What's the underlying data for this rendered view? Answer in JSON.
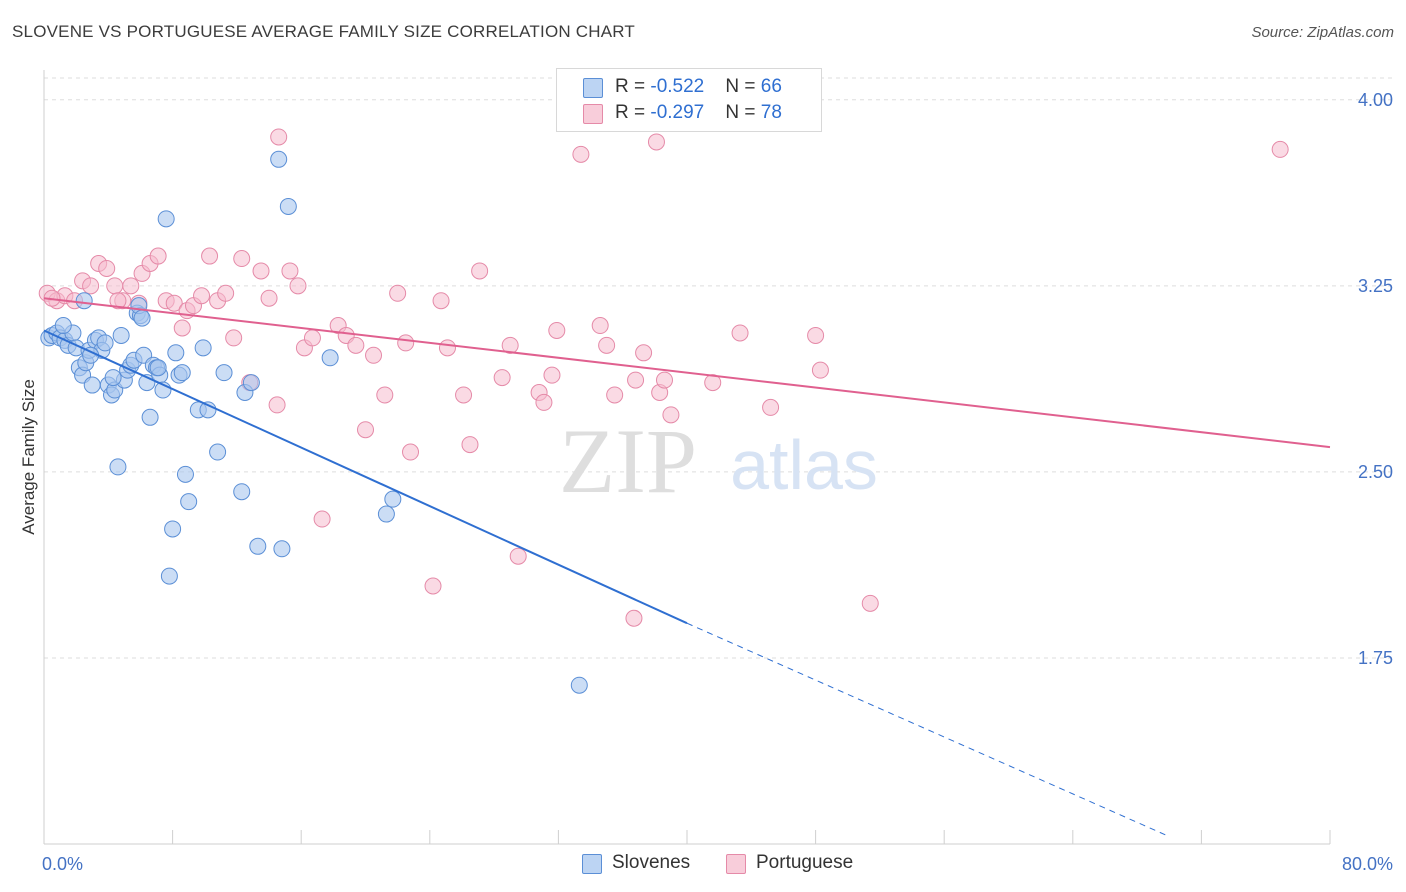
{
  "title": "SLOVENE VS PORTUGUESE AVERAGE FAMILY SIZE CORRELATION CHART",
  "source": "Source: ZipAtlas.com",
  "watermark": {
    "zip": "ZIP",
    "atlas": "atlas"
  },
  "colors": {
    "slovenes_fill": "#a9c7ef",
    "slovenes_stroke": "#5b8fd6",
    "slovenes_line": "#2f6fd1",
    "portuguese_fill": "#f5bccd",
    "portuguese_stroke": "#e58aa8",
    "portuguese_line": "#e0608f",
    "tick_text": "#4472c4",
    "grid": "#dddddd"
  },
  "legend_top": [
    {
      "r_label": "R = ",
      "r_value": "-0.522",
      "n_label": "N = ",
      "n_value": "66"
    },
    {
      "r_label": "R = ",
      "r_value": "-0.297",
      "n_label": "N = ",
      "n_value": "78"
    }
  ],
  "legend_bottom": [
    "Slovenes",
    "Portuguese"
  ],
  "chart_data": {
    "type": "scatter",
    "title": "SLOVENE VS PORTUGUESE AVERAGE FAMILY SIZE CORRELATION CHART",
    "xlabel": "",
    "ylabel": "Average Family Size",
    "xlim": [
      0,
      80
    ],
    "ylim": [
      1.0,
      4.12
    ],
    "x_tick_labels": [
      "0.0%",
      "80.0%"
    ],
    "y_ticks": [
      1.75,
      2.5,
      3.25,
      4.0
    ],
    "y_tick_labels": [
      "1.75",
      "2.50",
      "3.25",
      "4.00"
    ],
    "grid": true,
    "legend_position": "top-center",
    "series": [
      {
        "name": "Slovenes",
        "R": -0.522,
        "N": 66,
        "trend": {
          "x0": 0,
          "y0": 3.07,
          "x1": 40,
          "y1": 1.89,
          "dashed_to_x": 70,
          "dashed_to_y": 1.03
        },
        "points": [
          [
            0.3,
            3.04
          ],
          [
            0.5,
            3.05
          ],
          [
            0.8,
            3.06
          ],
          [
            1.0,
            3.04
          ],
          [
            1.3,
            3.03
          ],
          [
            1.5,
            3.01
          ],
          [
            1.8,
            3.06
          ],
          [
            2.0,
            3.0
          ],
          [
            2.2,
            2.92
          ],
          [
            2.4,
            2.89
          ],
          [
            2.6,
            2.94
          ],
          [
            2.8,
            2.99
          ],
          [
            3.0,
            2.85
          ],
          [
            3.2,
            3.03
          ],
          [
            3.4,
            3.04
          ],
          [
            3.6,
            2.99
          ],
          [
            3.8,
            3.02
          ],
          [
            4.0,
            2.85
          ],
          [
            4.2,
            2.81
          ],
          [
            4.4,
            2.83
          ],
          [
            4.6,
            2.52
          ],
          [
            4.8,
            3.05
          ],
          [
            5.0,
            2.87
          ],
          [
            5.2,
            2.91
          ],
          [
            5.4,
            2.93
          ],
          [
            5.6,
            2.95
          ],
          [
            5.8,
            3.14
          ],
          [
            6.0,
            3.13
          ],
          [
            6.2,
            2.97
          ],
          [
            6.4,
            2.86
          ],
          [
            6.6,
            2.72
          ],
          [
            6.8,
            2.93
          ],
          [
            7.0,
            2.92
          ],
          [
            7.2,
            2.89
          ],
          [
            7.4,
            2.83
          ],
          [
            7.6,
            3.52
          ],
          [
            7.8,
            2.08
          ],
          [
            8.0,
            2.27
          ],
          [
            8.2,
            2.98
          ],
          [
            8.4,
            2.89
          ],
          [
            8.6,
            2.9
          ],
          [
            8.8,
            2.49
          ],
          [
            9.0,
            2.38
          ],
          [
            9.6,
            2.75
          ],
          [
            9.9,
            3.0
          ],
          [
            10.2,
            2.75
          ],
          [
            10.8,
            2.58
          ],
          [
            11.2,
            2.9
          ],
          [
            12.3,
            2.42
          ],
          [
            12.5,
            2.82
          ],
          [
            12.9,
            2.86
          ],
          [
            13.3,
            2.2
          ],
          [
            14.8,
            2.19
          ],
          [
            14.6,
            3.76
          ],
          [
            15.2,
            3.57
          ],
          [
            17.8,
            2.96
          ],
          [
            21.3,
            2.33
          ],
          [
            21.7,
            2.39
          ],
          [
            33.3,
            1.64
          ],
          [
            2.5,
            3.19
          ],
          [
            1.2,
            3.09
          ],
          [
            5.9,
            3.17
          ],
          [
            2.9,
            2.97
          ],
          [
            6.1,
            3.12
          ],
          [
            4.3,
            2.88
          ],
          [
            7.1,
            2.92
          ]
        ]
      },
      {
        "name": "Portuguese",
        "R": -0.297,
        "N": 78,
        "trend": {
          "x0": 0,
          "y0": 3.2,
          "x1": 80,
          "y1": 2.6
        },
        "points": [
          [
            0.2,
            3.22
          ],
          [
            0.8,
            3.19
          ],
          [
            1.3,
            3.21
          ],
          [
            1.9,
            3.19
          ],
          [
            2.4,
            3.27
          ],
          [
            2.9,
            3.25
          ],
          [
            3.4,
            3.34
          ],
          [
            3.9,
            3.32
          ],
          [
            4.4,
            3.25
          ],
          [
            4.9,
            3.19
          ],
          [
            5.4,
            3.25
          ],
          [
            5.9,
            3.18
          ],
          [
            6.1,
            3.3
          ],
          [
            6.6,
            3.34
          ],
          [
            7.1,
            3.37
          ],
          [
            7.6,
            3.19
          ],
          [
            8.1,
            3.18
          ],
          [
            8.6,
            3.08
          ],
          [
            8.9,
            3.15
          ],
          [
            9.3,
            3.17
          ],
          [
            9.8,
            3.21
          ],
          [
            10.3,
            3.37
          ],
          [
            10.8,
            3.19
          ],
          [
            11.3,
            3.22
          ],
          [
            11.8,
            3.04
          ],
          [
            12.3,
            3.36
          ],
          [
            12.8,
            2.86
          ],
          [
            13.5,
            3.31
          ],
          [
            14.0,
            3.2
          ],
          [
            14.5,
            2.77
          ],
          [
            14.6,
            3.85
          ],
          [
            15.3,
            3.31
          ],
          [
            15.8,
            3.25
          ],
          [
            16.2,
            3.0
          ],
          [
            16.7,
            3.04
          ],
          [
            17.3,
            2.31
          ],
          [
            18.3,
            3.09
          ],
          [
            18.8,
            3.05
          ],
          [
            19.4,
            3.01
          ],
          [
            20.0,
            2.67
          ],
          [
            20.5,
            2.97
          ],
          [
            21.2,
            2.81
          ],
          [
            22.0,
            3.22
          ],
          [
            22.5,
            3.02
          ],
          [
            22.8,
            2.58
          ],
          [
            24.7,
            3.19
          ],
          [
            25.1,
            3.0
          ],
          [
            26.1,
            2.81
          ],
          [
            26.5,
            2.61
          ],
          [
            27.1,
            3.31
          ],
          [
            28.5,
            2.88
          ],
          [
            29.0,
            3.01
          ],
          [
            29.5,
            2.16
          ],
          [
            30.8,
            2.82
          ],
          [
            31.1,
            2.78
          ],
          [
            31.6,
            2.89
          ],
          [
            31.9,
            3.07
          ],
          [
            33.4,
            3.78
          ],
          [
            34.6,
            3.09
          ],
          [
            35.0,
            3.01
          ],
          [
            35.5,
            2.81
          ],
          [
            36.8,
            2.87
          ],
          [
            37.3,
            2.98
          ],
          [
            38.3,
            2.82
          ],
          [
            39.0,
            2.73
          ],
          [
            38.1,
            3.83
          ],
          [
            41.6,
            2.86
          ],
          [
            43.3,
            3.06
          ],
          [
            45.2,
            2.76
          ],
          [
            48.0,
            3.05
          ],
          [
            48.3,
            2.91
          ],
          [
            51.4,
            1.97
          ],
          [
            76.9,
            3.8
          ],
          [
            24.2,
            2.04
          ],
          [
            36.7,
            1.91
          ],
          [
            38.6,
            2.87
          ],
          [
            0.5,
            3.2
          ],
          [
            4.6,
            3.19
          ]
        ]
      }
    ]
  }
}
